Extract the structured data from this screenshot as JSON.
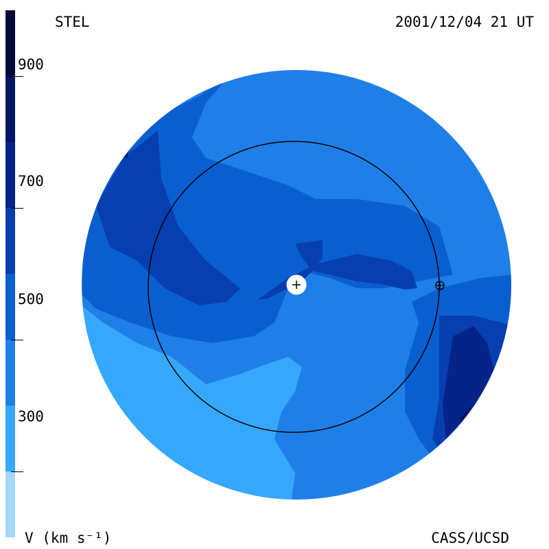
{
  "header": {
    "source": "STEL",
    "timestamp": "2001/12/04 21 UT"
  },
  "footer": {
    "units": "V (km s⁻¹)",
    "credit": "CASS/UCSD"
  },
  "colorbar": {
    "ticks": [
      "900",
      "700",
      "500",
      "300"
    ],
    "levels": [
      {
        "min": 200,
        "max": 300,
        "color": "#a4d8fb"
      },
      {
        "min": 300,
        "max": 400,
        "color": "#36a8fb"
      },
      {
        "min": 400,
        "max": 500,
        "color": "#1f7fe8"
      },
      {
        "min": 500,
        "max": 600,
        "color": "#0a5fd0"
      },
      {
        "min": 600,
        "max": 700,
        "color": "#073fb0"
      },
      {
        "min": 700,
        "max": 800,
        "color": "#05248a"
      },
      {
        "min": 800,
        "max": 900,
        "color": "#031565"
      },
      {
        "min": 900,
        "max": 1000,
        "color": "#020a3a"
      }
    ]
  },
  "map": {
    "outer_disk_color": "#0a5fd0",
    "center_marker": "+",
    "earth_marker": "⊕"
  }
}
